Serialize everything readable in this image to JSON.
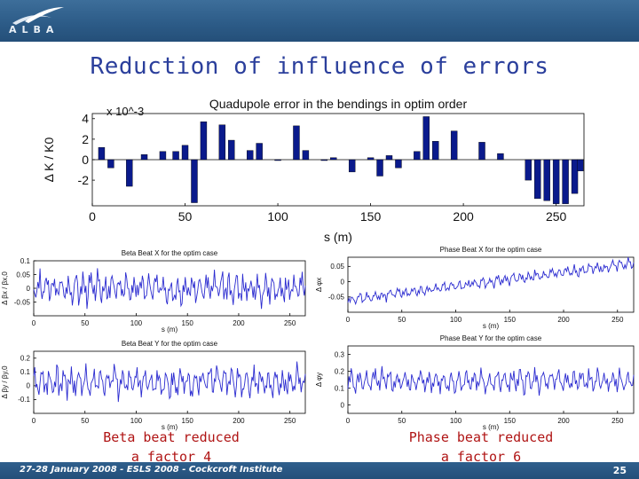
{
  "header": {
    "logo_text": "ALBA",
    "accent_color": "#2d5c88"
  },
  "slide": {
    "title": "Reduction of influence of errors",
    "caption_left_line1": "Beta beat reduced",
    "caption_left_line2": "a factor 4",
    "caption_right_line1": "Phase beat reduced",
    "caption_right_line2": "a factor 6"
  },
  "footer": {
    "text": "27-28 January 2008 - ESLS 2008 - Cockcroft Institute",
    "page_number": "25"
  },
  "chart_data": [
    {
      "type": "bar",
      "title": "Quadupole error in the bendings in optim order",
      "xlabel": "s (m)",
      "ylabel": "Δ K / K0",
      "scale_label": "x 10^-3",
      "xlim": [
        0,
        265
      ],
      "ylim": [
        -4.5,
        4.5
      ],
      "xticks": [
        0,
        50,
        100,
        150,
        200,
        250
      ],
      "yticks": [
        -2,
        0,
        2,
        4
      ],
      "color": "#0a1a8c",
      "x": [
        5,
        10,
        20,
        28,
        38,
        45,
        50,
        55,
        60,
        70,
        75,
        85,
        90,
        100,
        110,
        115,
        125,
        130,
        140,
        150,
        155,
        160,
        165,
        175,
        180,
        185,
        195,
        210,
        220,
        235,
        240,
        245,
        250,
        255,
        260,
        263
      ],
      "values": [
        1.2,
        -0.8,
        -2.6,
        0.5,
        0.8,
        0.8,
        1.4,
        -4.2,
        3.7,
        3.4,
        1.9,
        0.9,
        1.6,
        0.0,
        3.3,
        0.9,
        0.0,
        0.2,
        -1.2,
        0.2,
        -1.6,
        0.4,
        -0.8,
        0.8,
        4.2,
        1.8,
        2.8,
        1.7,
        0.6,
        -2.0,
        -3.8,
        -4.0,
        -4.3,
        -4.3,
        -3.3,
        -1.1
      ]
    },
    {
      "type": "line",
      "title": "Beta Beat X for the optim case",
      "xlabel": "s (m)",
      "ylabel": "Δ βx / βx,0",
      "xlim": [
        0,
        265
      ],
      "ylim": [
        -0.1,
        0.1
      ],
      "xticks": [
        0,
        50,
        100,
        150,
        200,
        250
      ],
      "yticks": [
        -0.05,
        0,
        0.05,
        0.1
      ],
      "amplitude": 0.055,
      "mean": 0.0
    },
    {
      "type": "line",
      "title": "Beta Beat Y for the optim case",
      "xlabel": "s (m)",
      "ylabel": "Δ βy / βy,0",
      "xlim": [
        0,
        265
      ],
      "ylim": [
        -0.2,
        0.25
      ],
      "xticks": [
        0,
        50,
        100,
        150,
        200,
        250
      ],
      "yticks": [
        -0.1,
        0,
        0.1,
        0.2
      ],
      "amplitude": 0.11,
      "mean": 0.03
    },
    {
      "type": "line",
      "title": "Phase Beat X for the optim case",
      "xlabel": "s (m)",
      "ylabel": "Δ φx",
      "xlim": [
        0,
        265
      ],
      "ylim": [
        -0.1,
        0.08
      ],
      "xticks": [
        0,
        50,
        100,
        150,
        200,
        250
      ],
      "yticks": [
        -0.05,
        0,
        0.05
      ],
      "amplitude": 0.018,
      "trend": [
        -0.06,
        0.06
      ]
    },
    {
      "type": "line",
      "title": "Phase Beat Y for the optim case",
      "xlabel": "s (m)",
      "ylabel": "Δ φy",
      "xlim": [
        0,
        265
      ],
      "ylim": [
        -0.05,
        0.35
      ],
      "xticks": [
        0,
        50,
        100,
        150,
        200,
        250
      ],
      "yticks": [
        0,
        0.1,
        0.2,
        0.3
      ],
      "amplitude": 0.07,
      "mean": 0.14
    }
  ]
}
